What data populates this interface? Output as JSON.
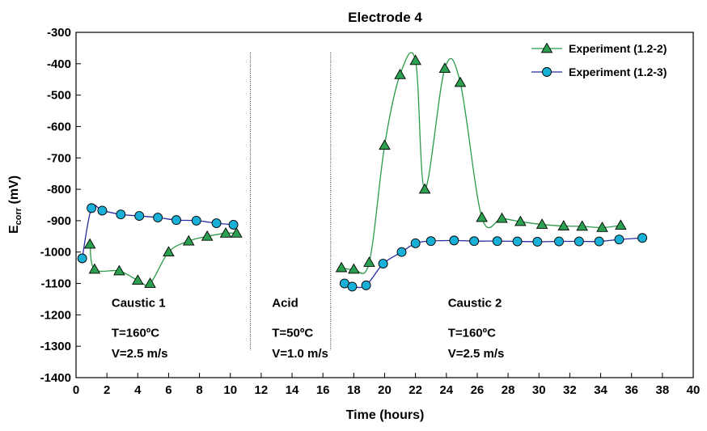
{
  "chart_data": {
    "type": "line",
    "title": "Electrode 4",
    "xlabel": "Time  (hours)",
    "ylabel_main": "E",
    "ylabel_sub": "corr",
    "ylabel_unit": " (mV)",
    "xlim": [
      0,
      40
    ],
    "ylim": [
      -1400,
      -300
    ],
    "x_ticks": [
      0,
      2,
      4,
      6,
      8,
      10,
      12,
      14,
      16,
      18,
      20,
      22,
      24,
      26,
      28,
      30,
      32,
      34,
      36,
      38,
      40
    ],
    "y_ticks": [
      -300,
      -400,
      -500,
      -600,
      -700,
      -800,
      -900,
      -1000,
      -1100,
      -1200,
      -1300,
      -1400
    ],
    "grid": false,
    "legend_position": "top-right",
    "vertical_lines": [
      11.3,
      16.5
    ],
    "annotations": [
      {
        "x": 2.3,
        "y": -1175,
        "text": "Caustic 1"
      },
      {
        "x": 2.3,
        "y": -1270,
        "text": "T=160ºC"
      },
      {
        "x": 2.3,
        "y": -1335,
        "text": "V=2.5 m/s"
      },
      {
        "x": 12.7,
        "y": -1175,
        "text": "Acid"
      },
      {
        "x": 12.7,
        "y": -1270,
        "text": "T=50ºC"
      },
      {
        "x": 12.7,
        "y": -1335,
        "text": "V=1.0 m/s"
      },
      {
        "x": 24.1,
        "y": -1175,
        "text": "Caustic 2"
      },
      {
        "x": 24.1,
        "y": -1270,
        "text": "T=160ºC"
      },
      {
        "x": 24.1,
        "y": -1335,
        "text": "V=2.5 m/s"
      }
    ],
    "series": [
      {
        "name": "Experiment (1.2-2)",
        "marker": "triangle",
        "line_color": "#2a9a4a",
        "marker_fill": "#2aa050",
        "segments": [
          [
            [
              0.9,
              -975
            ],
            [
              1.2,
              -1055
            ],
            [
              2.8,
              -1060
            ],
            [
              4.0,
              -1090
            ],
            [
              4.8,
              -1100
            ],
            [
              6.0,
              -1000
            ],
            [
              7.3,
              -965
            ],
            [
              8.5,
              -950
            ],
            [
              9.7,
              -940
            ],
            [
              10.4,
              -940
            ]
          ],
          [
            [
              17.2,
              -1050
            ],
            [
              18.0,
              -1055
            ],
            [
              19.0,
              -1033
            ],
            [
              20.0,
              -660
            ],
            [
              21.0,
              -435
            ],
            [
              22.0,
              -390
            ],
            [
              22.6,
              -800
            ],
            [
              23.9,
              -415
            ],
            [
              24.9,
              -460
            ],
            [
              26.3,
              -890
            ],
            [
              27.6,
              -893
            ],
            [
              28.8,
              -903
            ],
            [
              30.2,
              -912
            ],
            [
              31.6,
              -917
            ],
            [
              32.8,
              -918
            ],
            [
              34.1,
              -922
            ],
            [
              35.3,
              -915
            ]
          ]
        ]
      },
      {
        "name": "Experiment (1.2-3)",
        "marker": "circle",
        "line_color": "#2a2aa0",
        "marker_fill": "#19b0d8",
        "segments": [
          [
            [
              0.4,
              -1020
            ],
            [
              1.0,
              -860
            ],
            [
              1.7,
              -868
            ],
            [
              2.9,
              -880
            ],
            [
              4.1,
              -885
            ],
            [
              5.3,
              -890
            ],
            [
              6.5,
              -898
            ],
            [
              7.8,
              -900
            ],
            [
              9.1,
              -908
            ],
            [
              10.2,
              -913
            ]
          ],
          [
            [
              17.4,
              -1100
            ],
            [
              17.9,
              -1110
            ],
            [
              18.8,
              -1106
            ],
            [
              19.9,
              -1037
            ],
            [
              21.1,
              -1000
            ],
            [
              22.0,
              -972
            ],
            [
              23.0,
              -965
            ],
            [
              24.5,
              -963
            ],
            [
              25.8,
              -965
            ],
            [
              27.3,
              -965
            ],
            [
              28.6,
              -966
            ],
            [
              29.9,
              -967
            ],
            [
              31.3,
              -966
            ],
            [
              32.6,
              -966
            ],
            [
              33.9,
              -966
            ],
            [
              35.2,
              -960
            ],
            [
              36.7,
              -955
            ]
          ]
        ]
      }
    ]
  }
}
